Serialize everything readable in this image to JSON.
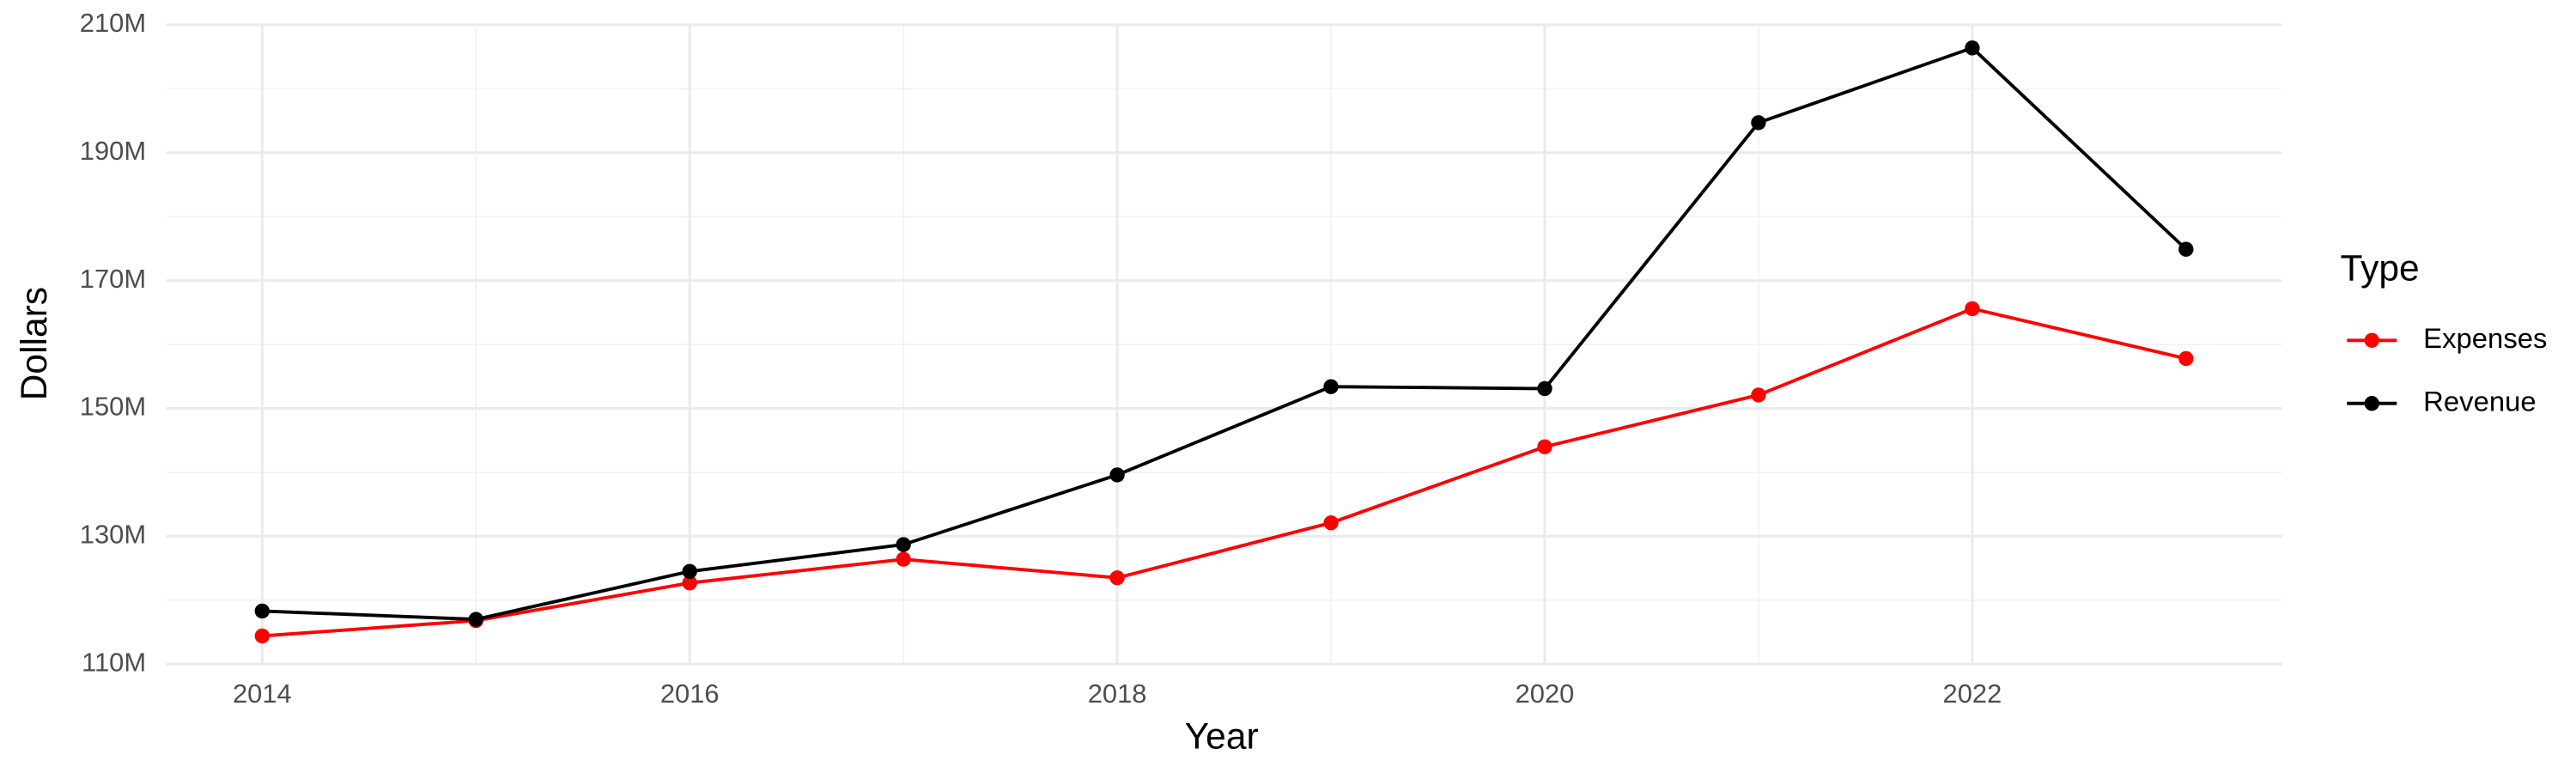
{
  "chart_data": {
    "type": "line",
    "x_label": "Year",
    "y_label": "Dollars",
    "legend_title": "Type",
    "x": [
      2014,
      2015,
      2016,
      2017,
      2018,
      2019,
      2020,
      2021,
      2022,
      2023
    ],
    "series": [
      {
        "name": "Expenses",
        "color": "#ff0000",
        "values": [
          114400000,
          116800000,
          122700000,
          126400000,
          123500000,
          132100000,
          144000000,
          152100000,
          165600000,
          157800000
        ]
      },
      {
        "name": "Revenue",
        "color": "#000000",
        "values": [
          118300000,
          117000000,
          124500000,
          128700000,
          139600000,
          153400000,
          153100000,
          194700000,
          206400000,
          174900000
        ]
      }
    ],
    "xlim": [
      2013.55,
      2023.45
    ],
    "xticks": [
      2014,
      2016,
      2018,
      2020,
      2022
    ],
    "ylim": [
      110000000,
      210000000
    ],
    "yticks": [
      {
        "value": 110000000,
        "label": "110M"
      },
      {
        "value": 130000000,
        "label": "130M"
      },
      {
        "value": 150000000,
        "label": "150M"
      },
      {
        "value": 170000000,
        "label": "170M"
      },
      {
        "value": 190000000,
        "label": "190M"
      },
      {
        "value": 210000000,
        "label": "210M"
      }
    ],
    "grid": true,
    "legend": "right"
  }
}
